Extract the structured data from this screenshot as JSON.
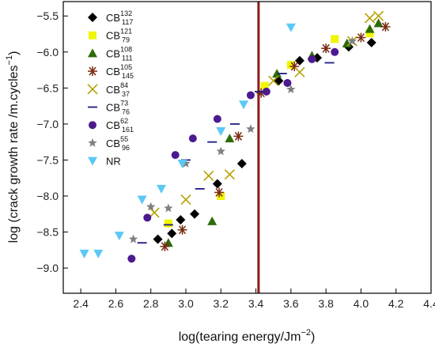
{
  "chart_data": {
    "type": "scatter",
    "xlabel": "log(tearing energy/Jm",
    "xlabel_sup": "−2",
    "xlabel_end": ")",
    "ylabel": "log (crack growth rate /m.cycles",
    "ylabel_sup": "−1",
    "ylabel_end": ")",
    "xlim": [
      2.3,
      4.4
    ],
    "ylim": [
      -9.35,
      -5.3
    ],
    "xticks": [
      "2.4",
      "2.6",
      "2.8",
      "3.0",
      "3.2",
      "3.4",
      "3.6",
      "3.8",
      "4.0",
      "4.2",
      "4.4"
    ],
    "yticks": [
      "−5.5",
      "−6.0",
      "−6.5",
      "−7.0",
      "−7.5",
      "−8.0",
      "−8.5",
      "−9.0"
    ],
    "vline": {
      "x": 3.415,
      "color": "#8b1a1a"
    },
    "series": [
      {
        "name": "CB",
        "sup": "132",
        "sub": "117",
        "marker": "diamond",
        "color": "#000000",
        "x": [
          2.84,
          2.92,
          2.97,
          3.05,
          3.18,
          3.32,
          3.53,
          3.65,
          3.75,
          3.93,
          4.06
        ],
        "y": [
          -8.6,
          -8.52,
          -8.33,
          -8.25,
          -7.83,
          -7.55,
          -6.4,
          -6.12,
          -6.08,
          -5.93,
          -5.87
        ]
      },
      {
        "name": "CB",
        "sup": "121",
        "sub": "79",
        "marker": "square",
        "color": "#f0f500",
        "x": [
          2.9,
          3.2,
          3.45,
          3.6,
          3.85,
          4.05
        ],
        "y": [
          -8.38,
          -8.0,
          -6.47,
          -6.18,
          -5.82,
          -5.74
        ]
      },
      {
        "name": "CB",
        "sup": "108",
        "sub": "111",
        "marker": "triangle",
        "color": "#2e6b0b",
        "x": [
          2.9,
          3.15,
          3.25,
          3.52,
          3.72,
          3.92,
          4.05,
          4.1
        ],
        "y": [
          -8.65,
          -8.35,
          -7.2,
          -6.3,
          -6.05,
          -5.88,
          -5.68,
          -5.6
        ]
      },
      {
        "name": "CB",
        "sup": "105",
        "sub": "145",
        "marker": "asterisk",
        "color": "#7a2a10",
        "x": [
          2.88,
          2.98,
          3.19,
          3.3,
          3.43,
          3.62,
          3.8,
          4.0,
          4.14
        ],
        "y": [
          -8.7,
          -8.47,
          -7.95,
          -7.17,
          -6.57,
          -6.2,
          -5.95,
          -5.8,
          -5.65
        ]
      },
      {
        "name": "CB",
        "sup": "84",
        "sub": "37",
        "marker": "cross",
        "color": "#b5a000",
        "x": [
          2.82,
          3.0,
          3.13,
          3.25,
          3.5,
          3.65,
          3.95,
          4.05,
          4.1
        ],
        "y": [
          -8.23,
          -8.05,
          -7.72,
          -7.7,
          -6.4,
          -6.28,
          -5.85,
          -5.53,
          -5.5
        ]
      },
      {
        "name": "CB",
        "sup": "73",
        "sub": "76",
        "marker": "dash",
        "color": "#1a1a80",
        "x": [
          2.75,
          2.9,
          3.0,
          3.08,
          3.15,
          3.28,
          3.42,
          3.55,
          3.82
        ],
        "y": [
          -8.65,
          -8.4,
          -7.5,
          -7.9,
          -7.25,
          -7.0,
          -6.55,
          -6.3,
          -6.15
        ]
      },
      {
        "name": "CB",
        "sup": "62",
        "sub": "161",
        "marker": "circle",
        "color": "#4b1a8f",
        "x": [
          2.69,
          2.78,
          2.94,
          3.04,
          3.18,
          3.37,
          3.46,
          3.58,
          3.72,
          3.85
        ],
        "y": [
          -8.87,
          -8.3,
          -7.43,
          -7.2,
          -6.93,
          -6.6,
          -6.55,
          -6.43,
          -6.1,
          -6.0
        ]
      },
      {
        "name": "CB",
        "sup": "55",
        "sub": "96",
        "marker": "star",
        "color": "#808080",
        "x": [
          2.7,
          2.8,
          2.9,
          3.0,
          3.2,
          3.37,
          3.6,
          3.95
        ],
        "y": [
          -8.6,
          -8.15,
          -8.17,
          -7.55,
          -7.38,
          -7.07,
          -6.52,
          -5.85
        ]
      },
      {
        "name": "NR",
        "sup": "",
        "sub": "",
        "marker": "triangle-down",
        "color": "#5bc8f5",
        "x": [
          2.42,
          2.5,
          2.62,
          2.75,
          2.86,
          2.98,
          3.2,
          3.33,
          3.6
        ],
        "y": [
          -8.8,
          -8.8,
          -8.55,
          -8.05,
          -7.9,
          -7.55,
          -7.1,
          -6.73,
          -5.66
        ]
      }
    ]
  }
}
